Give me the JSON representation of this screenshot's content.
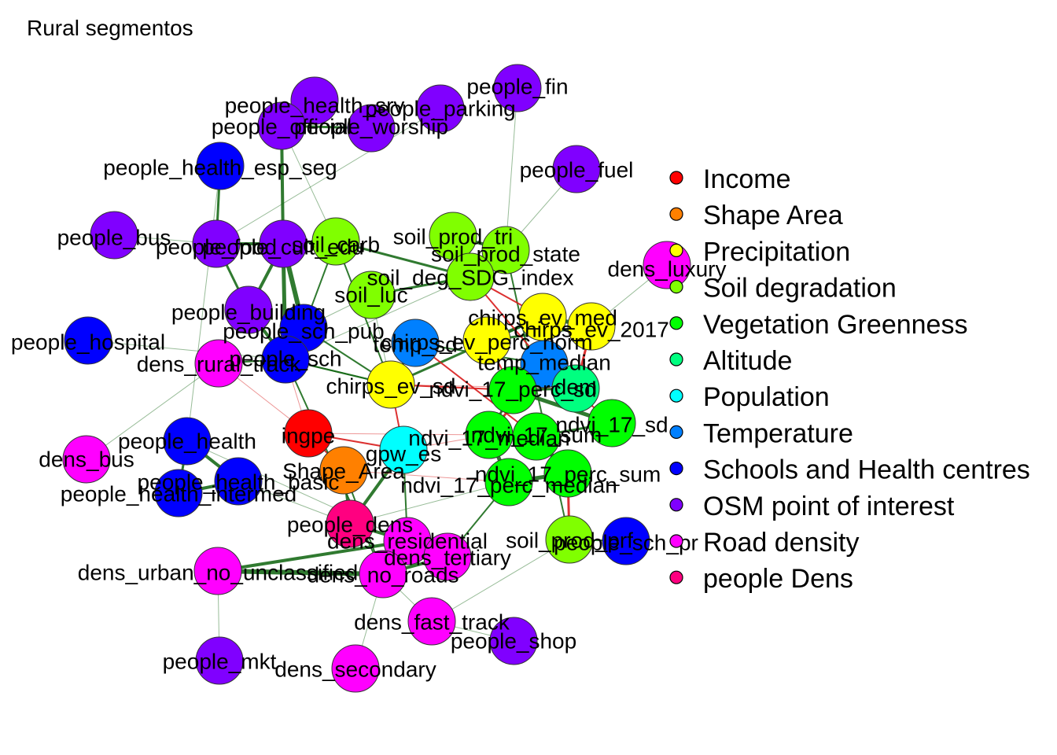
{
  "title": "Rural segmentos",
  "groups": [
    {
      "name": "Income",
      "color": "#ff0000"
    },
    {
      "name": "Shape Area",
      "color": "#ff8000"
    },
    {
      "name": "Precipitation",
      "color": "#ffff00"
    },
    {
      "name": "Soil degradation",
      "color": "#80ff00"
    },
    {
      "name": "Vegetation Greenness",
      "color": "#00ff00"
    },
    {
      "name": "Altitude",
      "color": "#00ff80"
    },
    {
      "name": "Population",
      "color": "#00ffff"
    },
    {
      "name": "Temperature",
      "color": "#0080ff"
    },
    {
      "name": "Schools and Health centres",
      "color": "#0000ff"
    },
    {
      "name": "OSM point of interest",
      "color": "#8000ff"
    },
    {
      "name": "Road density",
      "color": "#ff00ff"
    },
    {
      "name": "people Dens",
      "color": "#ff0080"
    }
  ],
  "nodes": [
    {
      "id": "people_fin",
      "group": 9
    },
    {
      "id": "people_health_srv",
      "group": 9
    },
    {
      "id": "people_parking",
      "group": 9
    },
    {
      "id": "people_official",
      "group": 9
    },
    {
      "id": "people_worship",
      "group": 9
    },
    {
      "id": "people_health_esp_seg",
      "group": 8
    },
    {
      "id": "people_fuel",
      "group": 9
    },
    {
      "id": "people_bus",
      "group": 9
    },
    {
      "id": "people_food",
      "group": 9
    },
    {
      "id": "people_cult_edu",
      "group": 9
    },
    {
      "id": "soil_carb",
      "group": 3
    },
    {
      "id": "soil_prod_tri",
      "group": 3
    },
    {
      "id": "soil_prod_state",
      "group": 3
    },
    {
      "id": "soil_deg_SDG_index",
      "group": 3
    },
    {
      "id": "soil_luc",
      "group": 3
    },
    {
      "id": "dens_luxury",
      "group": 10
    },
    {
      "id": "people_building",
      "group": 9
    },
    {
      "id": "people_sch_pub",
      "group": 8
    },
    {
      "id": "chirps_ev_med",
      "group": 2
    },
    {
      "id": "chirps_ev_2017",
      "group": 2
    },
    {
      "id": "chirps_ev_perc_norm",
      "group": 2
    },
    {
      "id": "people_hospital",
      "group": 8
    },
    {
      "id": "temp_sd",
      "group": 7
    },
    {
      "id": "dens_rural_track",
      "group": 10
    },
    {
      "id": "people_sch",
      "group": 8
    },
    {
      "id": "temp_median",
      "group": 7
    },
    {
      "id": "chirps_ev_sd",
      "group": 2
    },
    {
      "id": "ndvi_17_perc_sd",
      "group": 4
    },
    {
      "id": "dem",
      "group": 5
    },
    {
      "id": "ndvi_17_sd",
      "group": 4
    },
    {
      "id": "ingpe",
      "group": 0
    },
    {
      "id": "ndvi_17_median",
      "group": 4
    },
    {
      "id": "ndvi_17_sum",
      "group": 4
    },
    {
      "id": "gpw_es",
      "group": 6
    },
    {
      "id": "people_health",
      "group": 8
    },
    {
      "id": "dens_bus",
      "group": 10
    },
    {
      "id": "Shape_Area",
      "group": 1
    },
    {
      "id": "ndvi_17_perc_sum",
      "group": 4
    },
    {
      "id": "people_health_basic",
      "group": 8
    },
    {
      "id": "ndvi_17_perc_median",
      "group": 4
    },
    {
      "id": "people_health_intermed",
      "group": 8
    },
    {
      "id": "people_dens",
      "group": 11
    },
    {
      "id": "soil_prod_prf",
      "group": 3
    },
    {
      "id": "people_sch_pr",
      "group": 8
    },
    {
      "id": "dens_residential",
      "group": 10
    },
    {
      "id": "dens_tertiary",
      "group": 10
    },
    {
      "id": "dens_urban_no_unclassified",
      "group": 10
    },
    {
      "id": "dens_no_roads",
      "group": 10
    },
    {
      "id": "dens_fast_track",
      "group": 10
    },
    {
      "id": "people_shop",
      "group": 9
    },
    {
      "id": "people_mkt",
      "group": 9
    },
    {
      "id": "dens_secondary",
      "group": 10
    }
  ],
  "edges": [
    [
      "people_cult_edu",
      "people_sch_pub",
      "pos",
      6
    ],
    [
      "people_cult_edu",
      "people_food",
      "pos",
      4
    ],
    [
      "people_cult_edu",
      "people_official",
      "pos",
      4
    ],
    [
      "people_food",
      "people_health_esp_seg",
      "pos",
      3
    ],
    [
      "people_health_srv",
      "people_official",
      "pos",
      3
    ],
    [
      "people_official",
      "people_worship",
      "pos",
      3
    ],
    [
      "people_cult_edu",
      "people_building",
      "pos",
      4
    ],
    [
      "people_sch_pub",
      "people_sch",
      "pos",
      5
    ],
    [
      "people_building",
      "people_sch",
      "pos",
      4
    ],
    [
      "people_food",
      "people_building",
      "pos",
      3
    ],
    [
      "people_cult_edu",
      "people_sch",
      "pos",
      5
    ],
    [
      "people_health_basic",
      "people_health_intermed",
      "pos",
      4
    ],
    [
      "people_health",
      "people_health_basic",
      "pos",
      4
    ],
    [
      "people_health",
      "people_health_intermed",
      "pos",
      3
    ],
    [
      "people_dens",
      "dens_residential",
      "pos",
      4
    ],
    [
      "dens_residential",
      "dens_no_roads",
      "pos",
      5
    ],
    [
      "dens_urban_no_unclassified",
      "dens_no_roads",
      "pos",
      6
    ],
    [
      "dens_tertiary",
      "dens_no_roads",
      "pos",
      4
    ],
    [
      "dens_residential",
      "dens_tertiary",
      "pos",
      4
    ],
    [
      "dens_urban_no_unclassified",
      "dens_residential",
      "pos",
      4
    ],
    [
      "people_dens",
      "gpw_es",
      "pos",
      4
    ],
    [
      "people_dens",
      "Shape_Area",
      "pos",
      3
    ],
    [
      "ndvi_17_median",
      "ndvi_17_sum",
      "pos",
      6
    ],
    [
      "ndvi_17_median",
      "ndvi_17_perc_median",
      "pos",
      5
    ],
    [
      "ndvi_17_sum",
      "ndvi_17_perc_sum",
      "pos",
      5
    ],
    [
      "ndvi_17_perc_median",
      "ndvi_17_perc_sum",
      "pos",
      5
    ],
    [
      "ndvi_17_sd",
      "ndvi_17_perc_sd",
      "pos",
      5
    ],
    [
      "ndvi_17_perc_sd",
      "ndvi_17_median",
      "pos",
      3
    ],
    [
      "ndvi_17_sd",
      "ndvi_17_sum",
      "pos",
      3
    ],
    [
      "dem",
      "ndvi_17_perc_sd",
      "pos",
      3
    ],
    [
      "soil_prod_tri",
      "soil_prod_state",
      "pos",
      4
    ],
    [
      "soil_prod_state",
      "soil_deg_SDG_index",
      "pos",
      5
    ],
    [
      "soil_deg_SDG_index",
      "soil_luc",
      "pos",
      3
    ],
    [
      "soil_carb",
      "soil_deg_SDG_index",
      "pos",
      3
    ],
    [
      "soil_prod_prf",
      "soil_prod_state",
      "pos",
      2
    ],
    [
      "chirps_ev_med",
      "chirps_ev_2017",
      "pos",
      5
    ],
    [
      "chirps_ev_med",
      "chirps_ev_perc_norm",
      "pos",
      4
    ],
    [
      "chirps_ev_2017",
      "chirps_ev_perc_norm",
      "pos",
      3
    ],
    [
      "chirps_ev_sd",
      "chirps_ev_med",
      "pos",
      3
    ],
    [
      "temp_sd",
      "temp_median",
      "pos",
      2
    ],
    [
      "dem",
      "temp_median",
      "neg",
      5
    ],
    [
      "temp_median",
      "ndvi_17_median",
      "neg",
      3
    ],
    [
      "dem",
      "chirps_ev_2017",
      "neg",
      3
    ],
    [
      "temp_sd",
      "chirps_ev_sd",
      "pos",
      3
    ],
    [
      "ingpe",
      "gpw_es",
      "neg",
      2
    ],
    [
      "Shape_Area",
      "ingpe",
      "neg",
      2
    ],
    [
      "soil_deg_SDG_index",
      "chirps_ev_med",
      "neg",
      2
    ],
    [
      "soil_deg_SDG_index",
      "temp_median",
      "neg",
      2
    ],
    [
      "ndvi_17_perc_sum",
      "soil_prod_prf",
      "neg",
      3
    ],
    [
      "chirps_ev_perc_norm",
      "ndvi_17_perc_sd",
      "neg",
      2
    ],
    [
      "temp_median",
      "ndvi_17_sd",
      "neg",
      2
    ],
    [
      "ingpe",
      "people_sch",
      "neg",
      1
    ],
    [
      "ingpe",
      "dens_rural_track",
      "neg",
      1
    ],
    [
      "chirps_ev_sd",
      "people_sch",
      "pos",
      2
    ],
    [
      "gpw_es",
      "ndvi_17_median",
      "neg",
      1
    ],
    [
      "Shape_Area",
      "ndvi_17_perc_median",
      "neg",
      1
    ],
    [
      "people_sch",
      "chirps_ev_sd",
      "pos",
      2
    ],
    [
      "soil_carb",
      "chirps_ev_sd",
      "pos",
      2
    ],
    [
      "soil_luc",
      "people_sch_pub",
      "pos",
      1
    ],
    [
      "dens_rural_track",
      "dens_bus",
      "pos",
      1
    ],
    [
      "people_sch_pub",
      "chirps_ev_sd",
      "pos",
      2
    ],
    [
      "people_sch",
      "dens_no_roads",
      "pos",
      2
    ],
    [
      "dens_tertiary",
      "ndvi_17_perc_median",
      "pos",
      2
    ],
    [
      "people_dens",
      "ndvi_17_perc_median",
      "pos",
      1
    ],
    [
      "dens_fast_track",
      "soil_prod_prf",
      "pos",
      1
    ],
    [
      "dens_no_roads",
      "dens_fast_track",
      "pos",
      1
    ],
    [
      "dens_fast_track",
      "people_shop",
      "pos",
      1
    ],
    [
      "dens_secondary",
      "dens_no_roads",
      "pos",
      1
    ],
    [
      "people_mkt",
      "dens_urban_no_unclassified",
      "pos",
      1
    ],
    [
      "people_health",
      "dens_residential",
      "pos",
      1
    ],
    [
      "people_health_esp_seg",
      "people_health",
      "pos",
      1
    ],
    [
      "people_fin",
      "soil_prod_state",
      "pos",
      1
    ],
    [
      "people_parking",
      "people_food",
      "pos",
      1
    ],
    [
      "dens_luxury",
      "chirps_ev_2017",
      "pos",
      1
    ],
    [
      "people_sch_pr",
      "soil_prod_prf",
      "pos",
      2
    ],
    [
      "people_hospital",
      "people_sch",
      "pos",
      1
    ],
    [
      "people_bus",
      "people_food",
      "pos",
      1
    ],
    [
      "people_fuel",
      "soil_prod_state",
      "pos",
      1
    ],
    [
      "chirps_ev_sd",
      "ndvi_17_perc_sd",
      "neg",
      2
    ],
    [
      "chirps_ev_sd",
      "dem",
      "neg",
      1
    ],
    [
      "gpw_es",
      "chirps_ev_sd",
      "neg",
      2
    ],
    [
      "ingpe",
      "ndvi_17_median",
      "neg",
      1
    ],
    [
      "temp_sd",
      "ndvi_17_sum",
      "neg",
      2
    ],
    [
      "soil_luc",
      "chirps_ev_sd",
      "pos",
      1
    ],
    [
      "people_official",
      "soil_carb",
      "pos",
      1
    ],
    [
      "people_cult_edu",
      "soil_carb",
      "pos",
      2
    ],
    [
      "people_sch_pub",
      "soil_carb",
      "pos",
      2
    ],
    [
      "people_sch",
      "soil_deg_SDG_index",
      "pos",
      1
    ],
    [
      "Shape_Area",
      "dens_no_roads",
      "pos",
      2
    ],
    [
      "gpw_es",
      "dens_residential",
      "pos",
      2
    ],
    [
      "people_health_basic",
      "people_dens",
      "pos",
      1
    ],
    [
      "dens_rural_track",
      "people_sch",
      "pos",
      2
    ]
  ]
}
